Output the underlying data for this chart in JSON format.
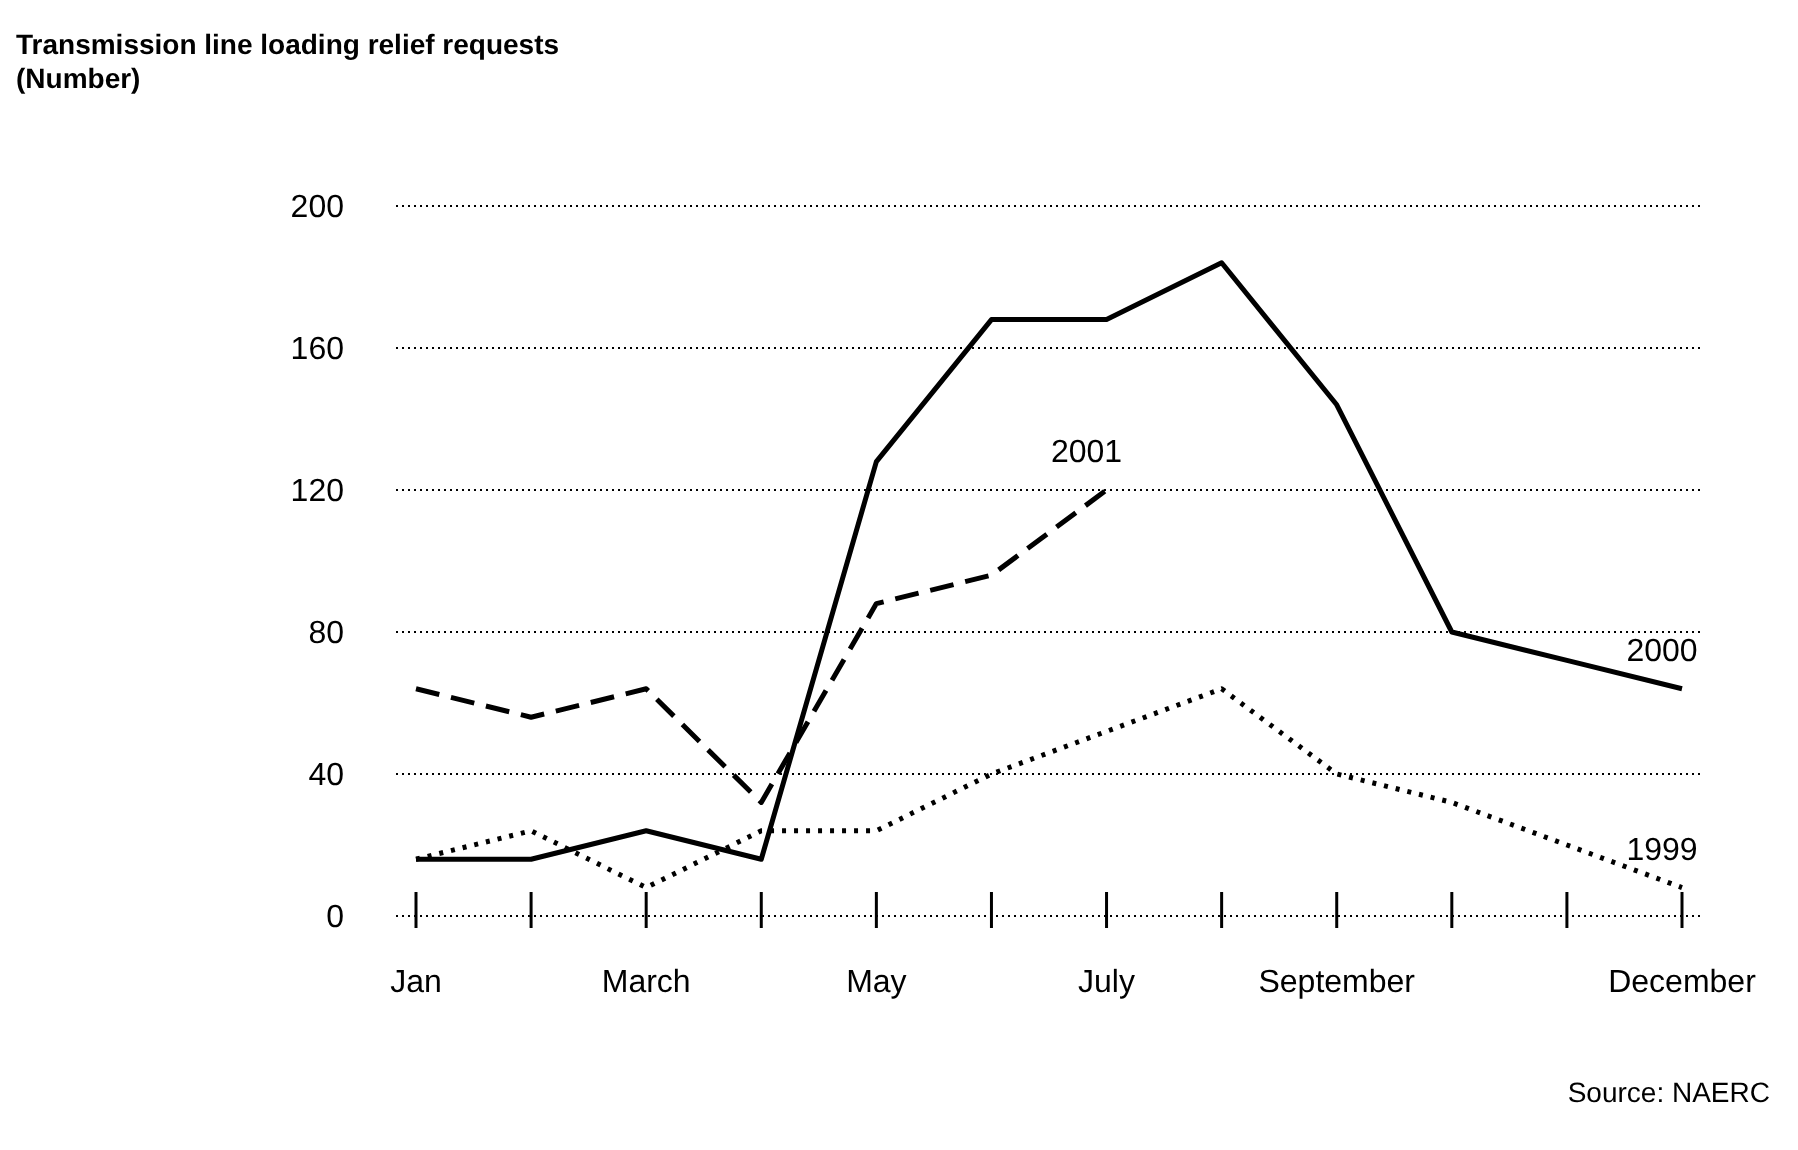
{
  "chart_data": {
    "type": "line",
    "title": "Transmission line loading relief requests\n(Number)",
    "categories": [
      "Jan",
      null,
      "March",
      null,
      "May",
      null,
      "July",
      null,
      "September",
      null,
      null,
      "December"
    ],
    "series": [
      {
        "name": "2000",
        "color": "#000000",
        "line_style": "solid",
        "values": [
          16,
          16,
          24,
          16,
          128,
          168,
          168,
          184,
          144,
          80,
          72,
          64
        ]
      },
      {
        "name": "2001",
        "color": "#000000",
        "line_style": "dashed",
        "values": [
          64,
          56,
          64,
          32,
          88,
          96,
          120,
          null,
          null,
          null,
          null,
          null
        ]
      },
      {
        "name": "1999",
        "color": "#000000",
        "line_style": "dotted",
        "values": [
          16,
          24,
          8,
          24,
          24,
          40,
          52,
          64,
          40,
          32,
          20,
          8
        ]
      }
    ],
    "ylim": [
      0,
      200
    ],
    "yticks": [
      0,
      40,
      80,
      120,
      160,
      200
    ],
    "grid": "y",
    "legend": false,
    "marker": "none",
    "annotations": [
      "Source: NAERC"
    ]
  }
}
